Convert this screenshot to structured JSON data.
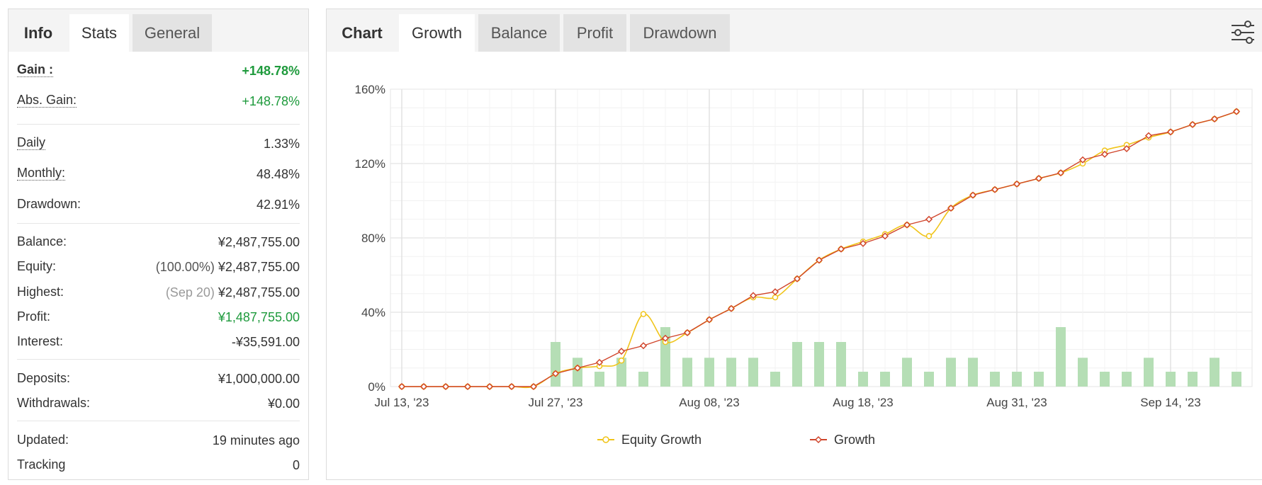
{
  "left_tabs": {
    "heading": "Info",
    "active": "Stats",
    "other": "General"
  },
  "stats": {
    "gain": {
      "label": "Gain :",
      "value": "+148.78%"
    },
    "abs_gain": {
      "label": "Abs. Gain:",
      "value": "+148.78%"
    },
    "daily": {
      "label": "Daily",
      "value": "1.33%"
    },
    "monthly": {
      "label": "Monthly:",
      "value": "48.48%"
    },
    "drawdown": {
      "label": "Drawdown:",
      "value": "42.91%"
    },
    "balance": {
      "label": "Balance:",
      "value": "¥2,487,755.00"
    },
    "equity": {
      "label": "Equity:",
      "prefix": "(100.00%)",
      "value": "¥2,487,755.00"
    },
    "highest": {
      "label": "Highest:",
      "prefix": "(Sep 20)",
      "value": "¥2,487,755.00"
    },
    "profit": {
      "label": "Profit:",
      "value": "¥1,487,755.00"
    },
    "interest": {
      "label": "Interest:",
      "value": "-¥35,591.00"
    },
    "deposits": {
      "label": "Deposits:",
      "value": "¥1,000,000.00"
    },
    "withdrawals": {
      "label": "Withdrawals:",
      "value": "¥0.00"
    },
    "updated": {
      "label": "Updated:",
      "value": "19 minutes ago"
    },
    "tracking": {
      "label": "Tracking",
      "value": "0"
    }
  },
  "chart_tabs": {
    "heading": "Chart",
    "active": "Growth",
    "others": [
      "Balance",
      "Profit",
      "Drawdown"
    ]
  },
  "icons": {
    "settings": "sliders-icon"
  },
  "colors": {
    "positive": "#1e9a3c",
    "equity_line": "#f0c419",
    "growth_line": "#d0442a",
    "bars": "#b5deb5"
  },
  "chart_data": {
    "type": "line",
    "title": "",
    "x_tick_labels": [
      "Jul 13, '23",
      "Jul 27, '23",
      "Aug 08, '23",
      "Aug 18, '23",
      "Aug 31, '23",
      "Sep 14, '23"
    ],
    "x_tick_positions": [
      0,
      7,
      14,
      21,
      28,
      35
    ],
    "y_ticks": [
      "0%",
      "40%",
      "80%",
      "120%",
      "160%"
    ],
    "ylim": [
      0,
      160
    ],
    "grid": true,
    "legend_position": "bottom",
    "series": [
      {
        "name": "Equity Growth",
        "color": "#f0c419",
        "values": [
          0,
          0,
          0,
          0,
          0,
          0,
          0,
          7,
          10,
          11,
          14,
          39,
          24,
          29,
          36,
          42,
          48,
          48,
          58,
          68,
          74,
          78,
          82,
          87,
          81,
          96,
          103,
          106,
          109,
          112,
          115,
          120,
          127,
          130,
          134,
          137,
          141,
          144,
          148
        ]
      },
      {
        "name": "Growth",
        "color": "#d0442a",
        "values": [
          0,
          0,
          0,
          0,
          0,
          0,
          0,
          7,
          10,
          13,
          19,
          22,
          26,
          29,
          36,
          42,
          49,
          51,
          58,
          68,
          74,
          77,
          81,
          87,
          90,
          96,
          103,
          106,
          109,
          112,
          115,
          122,
          125,
          128,
          135,
          137,
          141,
          144,
          148
        ]
      },
      {
        "name": "",
        "type": "bar",
        "color": "#b5deb5",
        "bar_start_index": 7,
        "values": [
          24,
          15.5,
          8,
          15.5,
          8,
          32,
          15.5,
          15.5,
          15.5,
          15.5,
          8,
          24,
          24,
          24,
          8,
          8,
          15.5,
          8,
          15.5,
          15.5,
          8,
          8,
          8,
          32,
          15.5,
          8,
          8,
          15.5,
          8,
          8,
          15.5,
          8
        ]
      }
    ]
  }
}
